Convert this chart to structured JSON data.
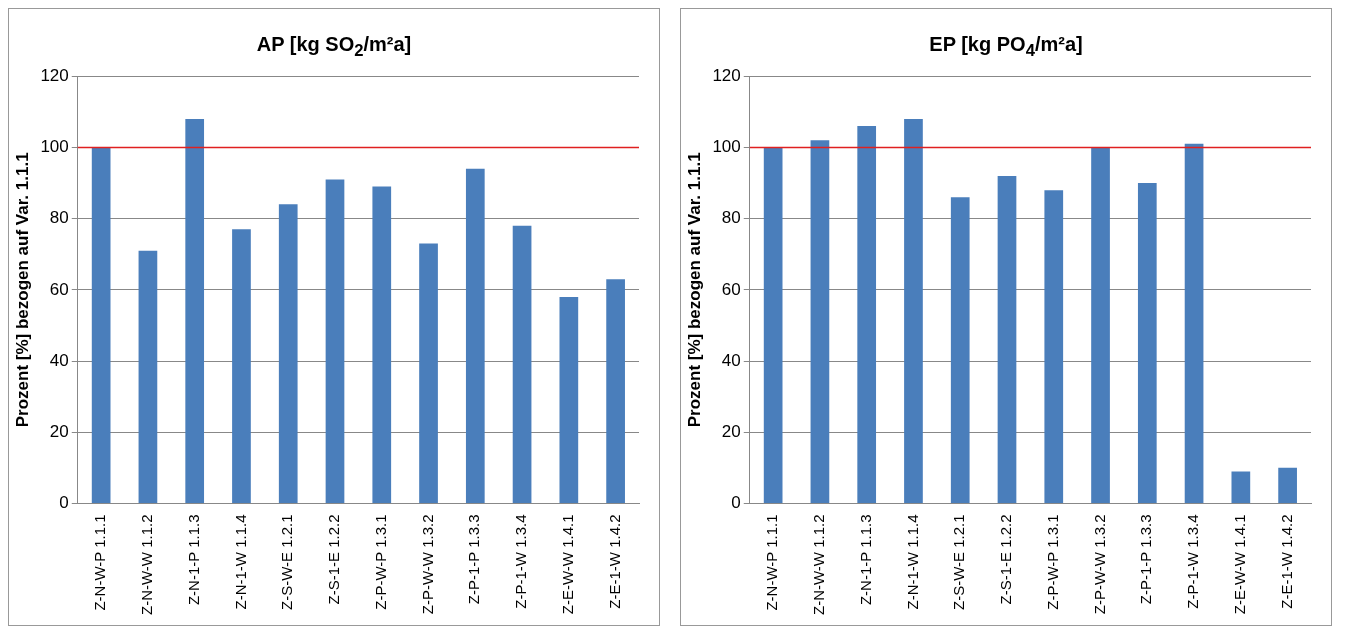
{
  "chart_data": [
    {
      "type": "bar",
      "title": "AP [kg SO$_{2}$/m²a]",
      "ylabel": "Prozent [%] bezogen auf Var. 1.1.1",
      "categories": [
        "Z-N-W-P 1.1.1",
        "Z-N-W-W 1.1.2",
        "Z-N-1-P 1.1.3",
        "Z-N-1-W 1.1.4",
        "Z-S-W-E 1.2.1",
        "Z-S-1-E 1.2.2",
        "Z-P-W-P 1.3.1",
        "Z-P-W-W 1.3.2",
        "Z-P-1-P 1.3.3",
        "Z-P-1-W 1.3.4",
        "Z-E-W-W 1.4.1",
        "Z-E-1-W 1.4.2"
      ],
      "values": [
        100,
        71,
        108,
        77,
        84,
        91,
        89,
        73,
        94,
        78,
        58,
        63
      ],
      "color": "#4a7ebb",
      "ylim": [
        0,
        120
      ],
      "yticks": [
        0,
        20,
        40,
        60,
        80,
        100,
        120
      ],
      "grid": "y",
      "legend": false,
      "ref_lines": [
        {
          "axis": "y",
          "value": 100,
          "color": "#e02020"
        }
      ]
    },
    {
      "type": "bar",
      "title": "EP [kg PO$_{4}$/m²a]",
      "ylabel": "Prozent [%] bezogen auf Var. 1.1.1",
      "categories": [
        "Z-N-W-P 1.1.1",
        "Z-N-W-W 1.1.2",
        "Z-N-1-P 1.1.3",
        "Z-N-1-W 1.1.4",
        "Z-S-W-E 1.2.1",
        "Z-S-1-E 1.2.2",
        "Z-P-W-P 1.3.1",
        "Z-P-W-W 1.3.2",
        "Z-P-1-P 1.3.3",
        "Z-P-1-W 1.3.4",
        "Z-E-W-W 1.4.1",
        "Z-E-1-W 1.4.2"
      ],
      "values": [
        100,
        102,
        106,
        108,
        86,
        92,
        88,
        100,
        90,
        101,
        9,
        10
      ],
      "color": "#4a7ebb",
      "ylim": [
        0,
        120
      ],
      "yticks": [
        0,
        20,
        40,
        60,
        80,
        100,
        120
      ],
      "grid": "y",
      "legend": false,
      "ref_lines": [
        {
          "axis": "y",
          "value": 100,
          "color": "#e02020"
        }
      ]
    }
  ]
}
